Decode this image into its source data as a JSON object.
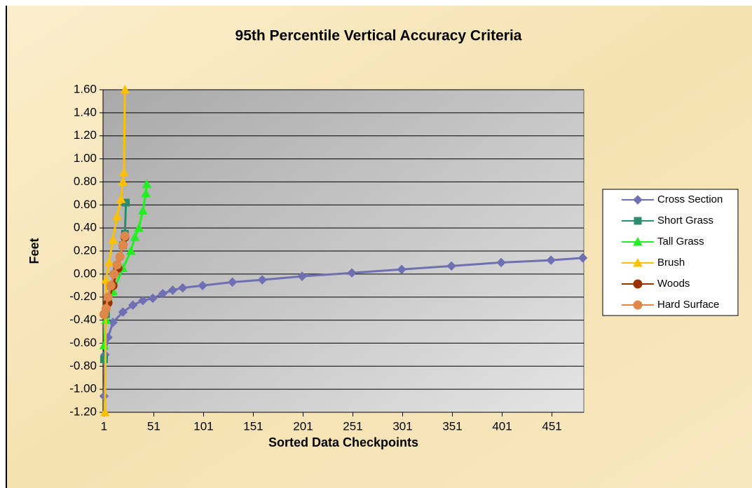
{
  "chart_data": {
    "type": "line",
    "title": "95th Percentile Vertical Accuracy Criteria",
    "x_label": "Sorted Data Checkpoints",
    "y_label": "Feet",
    "xlim": [
      0,
      483
    ],
    "xticks": [
      1,
      51,
      101,
      151,
      201,
      251,
      301,
      351,
      401,
      451
    ],
    "ylim": [
      -1.2,
      1.6
    ],
    "yticks": [
      {
        "value": -1.2,
        "label": "-1.20"
      },
      {
        "value": -1.0,
        "label": "-1.00"
      },
      {
        "value": -0.8,
        "label": "-0.80"
      },
      {
        "value": -0.6,
        "label": "-0.60"
      },
      {
        "value": -0.4,
        "label": "-0.40"
      },
      {
        "value": -0.2,
        "label": "-0.20"
      },
      {
        "value": 0,
        "label": "0.00"
      },
      {
        "value": 0.2,
        "label": "0.20"
      },
      {
        "value": 0.4,
        "label": "0.40"
      },
      {
        "value": 0.6,
        "label": "0.60"
      },
      {
        "value": 0.8,
        "label": "0.80"
      },
      {
        "value": 1.0,
        "label": "1.00"
      },
      {
        "value": 1.2,
        "label": "1.20"
      },
      {
        "value": 1.4,
        "label": "1.40"
      },
      {
        "value": 1.6,
        "label": "1.60"
      }
    ],
    "grid": true,
    "legend": "right",
    "series": [
      {
        "name": "Cross Section",
        "color": "#6f6fb3",
        "marker": "diamond",
        "x": [
          1,
          2,
          5,
          10,
          20,
          30,
          40,
          50,
          60,
          70,
          80,
          100,
          130,
          160,
          200,
          250,
          300,
          350,
          400,
          450,
          482
        ],
        "values": [
          -1.06,
          -0.7,
          -0.55,
          -0.42,
          -0.33,
          -0.27,
          -0.23,
          -0.21,
          -0.17,
          -0.14,
          -0.12,
          -0.1,
          -0.07,
          -0.05,
          -0.02,
          0.01,
          0.04,
          0.07,
          0.1,
          0.12,
          0.14
        ]
      },
      {
        "name": "Short Grass",
        "color": "#2e8b6e",
        "marker": "square",
        "x": [
          1,
          3,
          8,
          14,
          20,
          22,
          23
        ],
        "values": [
          -0.74,
          -0.35,
          -0.1,
          0.05,
          0.25,
          0.35,
          0.62
        ]
      },
      {
        "name": "Tall Grass",
        "color": "#22ee22",
        "marker": "triangle",
        "x": [
          1,
          3,
          10,
          20,
          28,
          32,
          36,
          40,
          43,
          44
        ],
        "values": [
          -0.62,
          -0.4,
          -0.15,
          0.05,
          0.2,
          0.32,
          0.4,
          0.55,
          0.7,
          0.78
        ]
      },
      {
        "name": "Brush",
        "color": "#ffc000",
        "marker": "triangle",
        "x": [
          2,
          3,
          6,
          10,
          14,
          18,
          20,
          21,
          22
        ],
        "values": [
          -1.2,
          -0.05,
          0.1,
          0.3,
          0.5,
          0.65,
          0.8,
          0.88,
          1.6
        ]
      },
      {
        "name": "Woods",
        "color": "#993300",
        "marker": "circle",
        "x": [
          1,
          5,
          10,
          15,
          20,
          22
        ],
        "values": [
          -0.35,
          -0.25,
          -0.1,
          0.05,
          0.25,
          0.32
        ]
      },
      {
        "name": "Hard Surface",
        "color": "#e0874a",
        "marker": "circle",
        "x": [
          1,
          3,
          5,
          8,
          11,
          14,
          17,
          20,
          22
        ],
        "values": [
          -0.35,
          -0.3,
          -0.2,
          -0.1,
          0.0,
          0.08,
          0.15,
          0.25,
          0.33
        ]
      }
    ]
  }
}
